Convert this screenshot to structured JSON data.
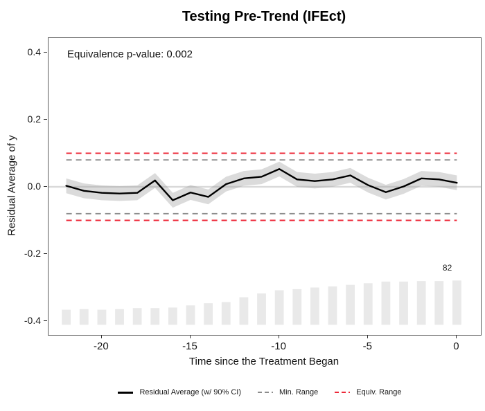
{
  "title": "Testing Pre-Trend (IFEct)",
  "annotation": "Equivalence p-value: 0.002",
  "axes": {
    "x_label": "Time since the Treatment Began",
    "y_label": "Residual Average of y",
    "x_ticks": [
      {
        "value": -20,
        "label": "-20"
      },
      {
        "value": -15,
        "label": "-15"
      },
      {
        "value": -10,
        "label": "-10"
      },
      {
        "value": -5,
        "label": "-5"
      },
      {
        "value": 0,
        "label": "0"
      }
    ],
    "y_ticks": [
      {
        "value": 0.4,
        "label": "0.4"
      },
      {
        "value": 0.2,
        "label": "0.2"
      },
      {
        "value": 0.0,
        "label": "0.0"
      },
      {
        "value": -0.2,
        "label": "-0.2"
      },
      {
        "value": -0.4,
        "label": "-0.4"
      }
    ]
  },
  "legend": [
    {
      "label": "Residual Average (w/ 90% CI)",
      "style": "solid",
      "color": "#000000"
    },
    {
      "label": "Min. Range",
      "style": "dashed",
      "color": "#8c8c8c"
    },
    {
      "label": "Equiv. Range",
      "style": "dashed",
      "color": "#ed2939"
    }
  ],
  "chart_data": {
    "type": "line",
    "title": "Testing Pre-Trend (IFEct)",
    "xlabel": "Time since the Treatment Began",
    "ylabel": "Residual Average of y",
    "xlim": [
      -23.0,
      1.35
    ],
    "ylim": [
      -0.441,
      0.443
    ],
    "grid": "off",
    "legend_position": "bottom",
    "equivalence_p_value": 0.002,
    "x": [
      -22,
      -21,
      -20,
      -19,
      -18,
      -17,
      -16,
      -15,
      -14,
      -13,
      -12,
      -11,
      -10,
      -9,
      -8,
      -7,
      -6,
      -5,
      -4,
      -3,
      -2,
      -1,
      0
    ],
    "series": [
      {
        "name": "Residual Average (w/ 90% CI)",
        "values": [
          0.003,
          -0.012,
          -0.018,
          -0.02,
          -0.018,
          0.019,
          -0.04,
          -0.017,
          -0.03,
          0.008,
          0.025,
          0.03,
          0.053,
          0.022,
          0.017,
          0.022,
          0.034,
          0.005,
          -0.016,
          0.001,
          0.025,
          0.022,
          0.012
        ]
      }
    ],
    "ci_half_width": 0.022,
    "min_range": [
      -0.08,
      0.08
    ],
    "equiv_range": [
      -0.1,
      0.1
    ],
    "bars": {
      "counts": [
        28,
        29,
        28,
        29,
        31,
        31,
        32,
        36,
        40,
        42,
        51,
        58,
        64,
        66,
        69,
        71,
        74,
        77,
        80,
        80,
        81,
        81,
        82
      ],
      "max_count": 82,
      "base_value": -0.411,
      "max_height_value": 0.132,
      "bar_width_units": 0.5,
      "label": "82",
      "label_x": -0.5,
      "label_y": -0.243
    },
    "colors": {
      "line": "#000000",
      "band": "#a0a0a0",
      "band_opacity": 0.38,
      "zero_line": "#d9d9d9",
      "bar": "#e9e9e9",
      "min_range": "#8c8c8c",
      "equiv_range": "#ed2939"
    }
  }
}
